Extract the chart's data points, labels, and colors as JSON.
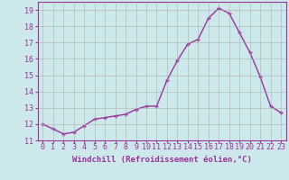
{
  "x": [
    0,
    1,
    2,
    3,
    4,
    5,
    6,
    7,
    8,
    9,
    10,
    11,
    12,
    13,
    14,
    15,
    16,
    17,
    18,
    19,
    20,
    21,
    22,
    23
  ],
  "y": [
    12.0,
    11.7,
    11.4,
    11.5,
    11.9,
    12.3,
    12.4,
    12.5,
    12.6,
    12.9,
    13.1,
    13.1,
    14.7,
    15.9,
    16.9,
    17.2,
    18.5,
    19.1,
    18.8,
    17.6,
    16.4,
    14.9,
    13.1,
    12.7
  ],
  "line_color": "#993399",
  "marker": "+",
  "marker_size": 3,
  "bg_color": "#cde8ea",
  "grid_color": "#aaaaaa",
  "xlabel": "Windchill (Refroidissement éolien,°C)",
  "ylabel": "",
  "ylim": [
    11,
    19.5
  ],
  "yticks": [
    11,
    12,
    13,
    14,
    15,
    16,
    17,
    18,
    19
  ],
  "xticks": [
    0,
    1,
    2,
    3,
    4,
    5,
    6,
    7,
    8,
    9,
    10,
    11,
    12,
    13,
    14,
    15,
    16,
    17,
    18,
    19,
    20,
    21,
    22,
    23
  ],
  "xlabel_fontsize": 6.5,
  "tick_fontsize": 6,
  "axis_color": "#993399"
}
